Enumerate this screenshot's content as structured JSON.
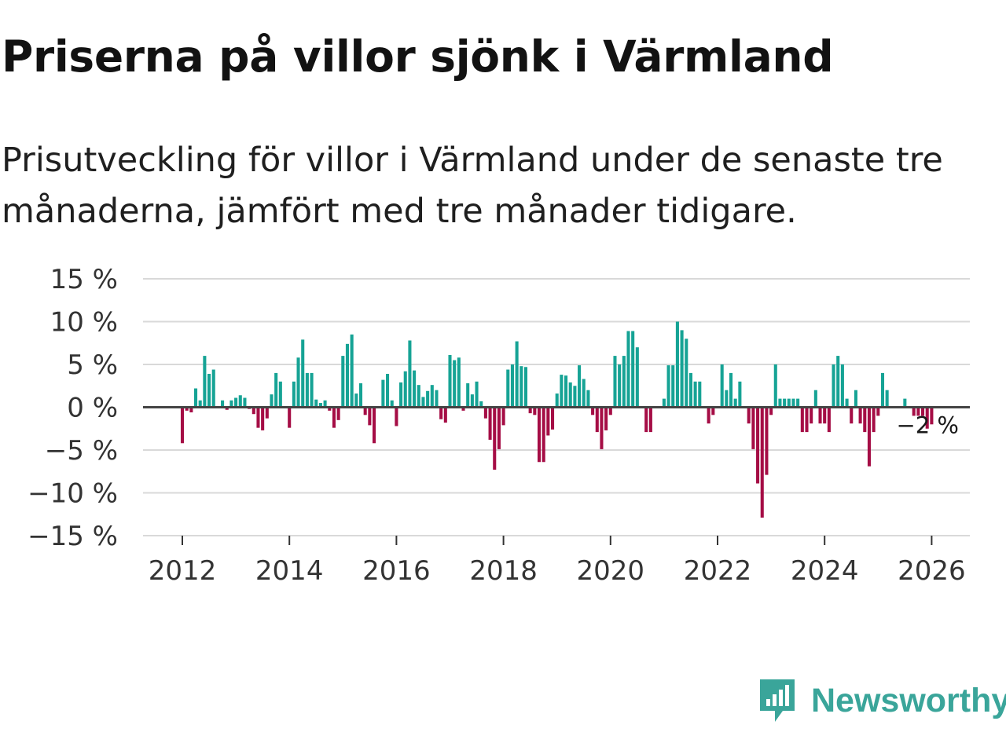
{
  "chart_data": {
    "type": "bar",
    "title": "Priserna på villor sjönk i Värmland",
    "subtitle": "Prisutveckling för villor i Värmland under de senaste tre månaderna, jämfört med tre månader tidigare.",
    "xlabel": "",
    "ylabel": "",
    "unit": "%",
    "ylim": [
      -15,
      15
    ],
    "yticks": [
      15,
      10,
      5,
      0,
      -5,
      -10,
      -15
    ],
    "ytick_labels": [
      "15 %",
      "10 %",
      "5 %",
      "0 %",
      "−5 %",
      "−10 %",
      "−15 %"
    ],
    "xticks": [
      2012,
      2014,
      2016,
      2018,
      2020,
      2022,
      2024,
      2026
    ],
    "xtick_labels": [
      "2012",
      "2014",
      "2016",
      "2018",
      "2020",
      "2022",
      "2024",
      "2026"
    ],
    "x_start": "2012-01",
    "frequency": "monthly",
    "values": [
      -4.2,
      -0.4,
      -0.6,
      2.2,
      0.8,
      6.0,
      3.9,
      4.4,
      0.0,
      0.8,
      -0.3,
      0.8,
      1.1,
      1.4,
      1.1,
      -0.2,
      -0.8,
      -2.4,
      -2.7,
      -1.3,
      1.5,
      4.0,
      3.0,
      0.0,
      -2.4,
      3.0,
      5.8,
      7.9,
      4.0,
      4.0,
      0.9,
      0.5,
      0.8,
      -0.4,
      -2.4,
      -1.5,
      6.0,
      7.4,
      8.5,
      1.6,
      2.8,
      -0.9,
      -2.1,
      -4.2,
      0.0,
      3.2,
      3.9,
      0.8,
      -2.2,
      2.9,
      4.2,
      7.8,
      4.3,
      2.6,
      1.2,
      1.9,
      2.6,
      2.0,
      -1.4,
      -1.8,
      6.1,
      5.5,
      5.8,
      -0.4,
      2.8,
      1.5,
      3.0,
      0.7,
      -1.3,
      -3.8,
      -7.3,
      -4.9,
      -2.1,
      4.4,
      5.0,
      7.7,
      4.8,
      4.7,
      -0.7,
      -0.9,
      -6.4,
      -6.4,
      -3.3,
      -2.6,
      1.6,
      3.8,
      3.7,
      2.9,
      2.5,
      4.9,
      3.3,
      2.0,
      -0.9,
      -2.9,
      -4.9,
      -2.7,
      -0.9,
      6.0,
      5.0,
      6.0,
      8.9,
      8.9,
      7.0,
      0.0,
      -2.9,
      -2.9,
      0.0,
      0.0,
      1.0,
      4.9,
      4.9,
      10.0,
      9.0,
      8.0,
      4.0,
      3.0,
      3.0,
      0.0,
      -1.9,
      -0.9,
      0.0,
      5.0,
      2.0,
      4.0,
      1.0,
      3.0,
      0.0,
      -1.9,
      -4.9,
      -8.9,
      -12.9,
      -7.9,
      -0.9,
      5.0,
      1.0,
      1.0,
      1.0,
      1.0,
      1.0,
      -2.9,
      -2.9,
      -1.9,
      2.0,
      -1.9,
      -1.9,
      -2.9,
      5.0,
      6.0,
      5.0,
      1.0,
      -1.9,
      2.0,
      -1.9,
      -2.9,
      -6.9,
      -2.9,
      -1.0,
      4.0,
      2.0,
      0.0,
      0.0,
      0.0,
      1.0,
      0.0,
      -1.0,
      -1.0,
      -1.0,
      -2.5,
      -2.0
    ],
    "colors": {
      "positive": "#16a395",
      "negative": "#a50d45",
      "grid": "#d9d9d9",
      "zero_line": "#444444"
    },
    "annotation": {
      "label": "−2 %",
      "value": -2
    }
  },
  "brand": {
    "name": "Newsworthy",
    "icon": "newsworthy-logo-icon",
    "color": "#3aa59a"
  }
}
